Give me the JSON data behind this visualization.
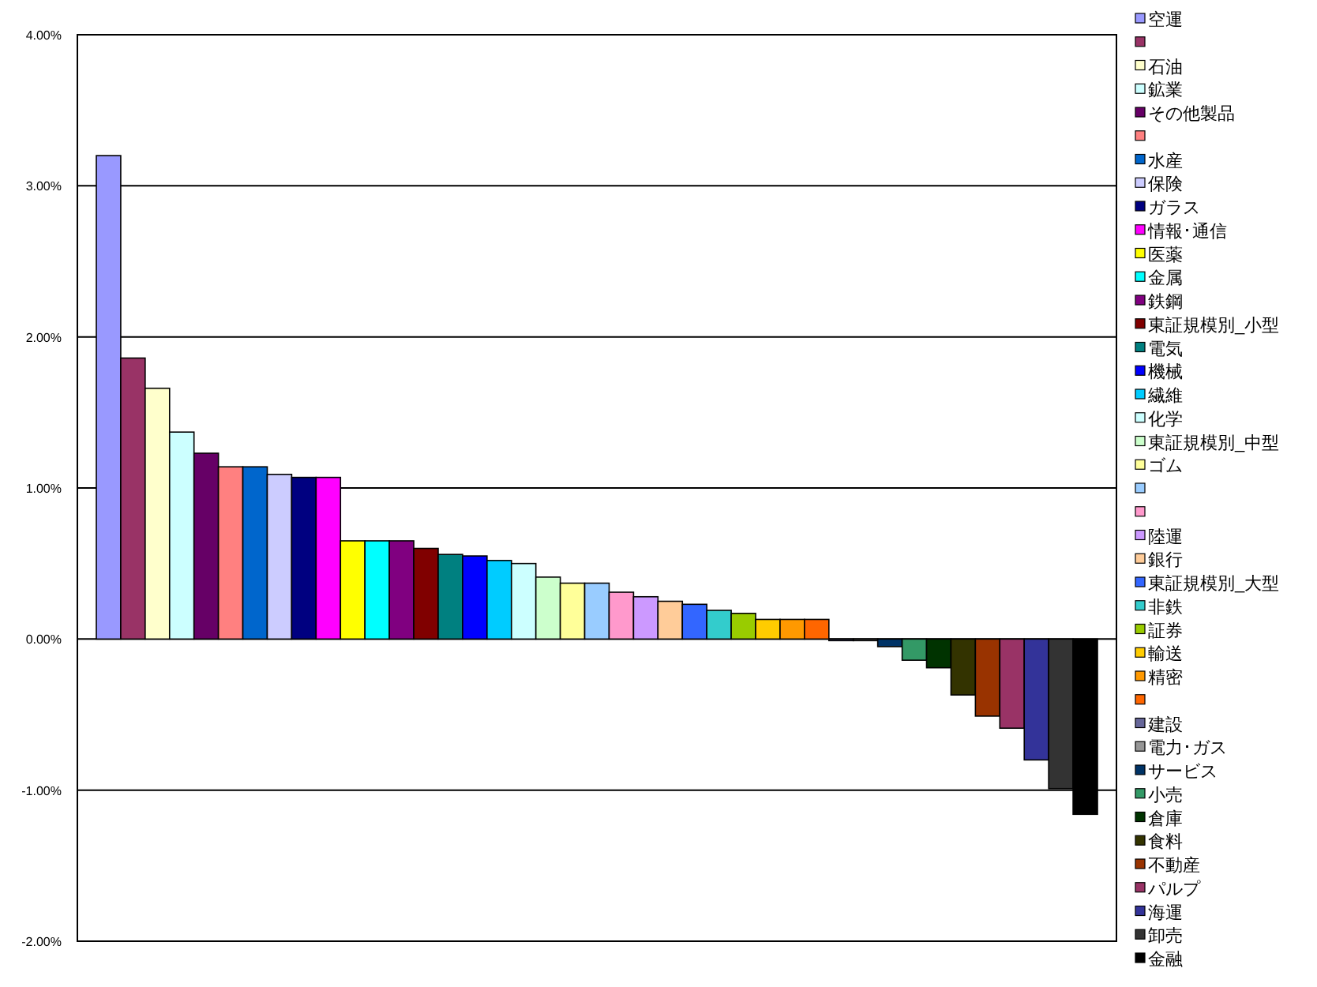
{
  "chart_data": {
    "type": "bar",
    "categories": [
      null
    ],
    "series": [
      {
        "name": "空運",
        "color": "#9999ff",
        "values": [
          3.2
        ]
      },
      {
        "color": "#993366",
        "values": [
          1.86
        ]
      },
      {
        "name": "石油",
        "color": "#ffffcc",
        "values": [
          1.66
        ]
      },
      {
        "name": "鉱業",
        "color": "#ccffff",
        "values": [
          1.37
        ]
      },
      {
        "name": "その他製品",
        "color": "#660066",
        "values": [
          1.23
        ]
      },
      {
        "color": "#ff8080",
        "values": [
          1.14
        ]
      },
      {
        "name": "水産",
        "color": "#0066cc",
        "values": [
          1.14
        ]
      },
      {
        "name": "保険",
        "color": "#ccccff",
        "values": [
          1.09
        ]
      },
      {
        "name": "ガラス",
        "color": "#000080",
        "values": [
          1.07
        ]
      },
      {
        "name": "情報･通信",
        "color": "#ff00ff",
        "values": [
          1.07
        ]
      },
      {
        "name": "医薬",
        "color": "#ffff00",
        "values": [
          0.65
        ]
      },
      {
        "name": "金属",
        "color": "#00ffff",
        "values": [
          0.65
        ]
      },
      {
        "name": "鉄鋼",
        "color": "#800080",
        "values": [
          0.65
        ]
      },
      {
        "name": "東証規模別_小型",
        "color": "#800000",
        "values": [
          0.6
        ]
      },
      {
        "name": "電気",
        "color": "#008080",
        "values": [
          0.56
        ]
      },
      {
        "name": "機械",
        "color": "#0000ff",
        "values": [
          0.55
        ]
      },
      {
        "name": "繊維",
        "color": "#00ccff",
        "values": [
          0.52
        ]
      },
      {
        "name": "化学",
        "color": "#ccffff",
        "values": [
          0.5
        ]
      },
      {
        "name": "東証規模別_中型",
        "color": "#ccffcc",
        "values": [
          0.41
        ]
      },
      {
        "name": "ゴム",
        "color": "#ffff99",
        "values": [
          0.37
        ]
      },
      {
        "color": "#99ccff",
        "values": [
          0.37
        ]
      },
      {
        "color": "#ff99cc",
        "values": [
          0.31
        ]
      },
      {
        "name": "陸運",
        "color": "#cc99ff",
        "values": [
          0.28
        ]
      },
      {
        "name": "銀行",
        "color": "#ffcc99",
        "values": [
          0.25
        ]
      },
      {
        "name": "東証規模別_大型",
        "color": "#3366ff",
        "values": [
          0.23
        ]
      },
      {
        "name": "非鉄",
        "color": "#33cccc",
        "values": [
          0.19
        ]
      },
      {
        "name": "証券",
        "color": "#99cc00",
        "values": [
          0.17
        ]
      },
      {
        "name": "輸送",
        "color": "#ffcc00",
        "values": [
          0.13
        ]
      },
      {
        "name": "精密",
        "color": "#ff9900",
        "values": [
          0.13
        ]
      },
      {
        "color": "#ff6600",
        "values": [
          0.13
        ]
      },
      {
        "name": "建設",
        "color": "#666699",
        "values": [
          -0.01
        ]
      },
      {
        "name": "電力･ガス",
        "color": "#969696",
        "values": [
          -0.01
        ]
      },
      {
        "name": "サービス",
        "color": "#003366",
        "values": [
          -0.05
        ]
      },
      {
        "name": "小売",
        "color": "#339966",
        "values": [
          -0.14
        ]
      },
      {
        "name": "倉庫",
        "color": "#003300",
        "values": [
          -0.19
        ]
      },
      {
        "name": "食料",
        "color": "#333300",
        "values": [
          -0.37
        ]
      },
      {
        "name": "不動産",
        "color": "#993300",
        "values": [
          -0.51
        ]
      },
      {
        "name": "パルプ",
        "color": "#993366",
        "values": [
          -0.59
        ]
      },
      {
        "name": "海運",
        "color": "#333399",
        "values": [
          -0.8
        ]
      },
      {
        "name": "卸売",
        "color": "#333333",
        "values": [
          -0.99
        ]
      },
      {
        "name": "金融",
        "color": "#000000",
        "values": [
          -1.16
        ]
      }
    ],
    "ylim": [
      -2,
      4
    ],
    "yticks": [
      {
        "value": -2,
        "label": "-2.00%"
      },
      {
        "value": -1,
        "label": "-1.00%"
      },
      {
        "value": 0,
        "label": "0.00%"
      },
      {
        "value": 1,
        "label": "1.00%"
      },
      {
        "value": 2,
        "label": "2.00%"
      },
      {
        "value": 3,
        "label": "3.00%"
      },
      {
        "value": 4,
        "label": "4.00%"
      }
    ],
    "grid": "y",
    "legend": "right",
    "tick_labels": "y"
  }
}
